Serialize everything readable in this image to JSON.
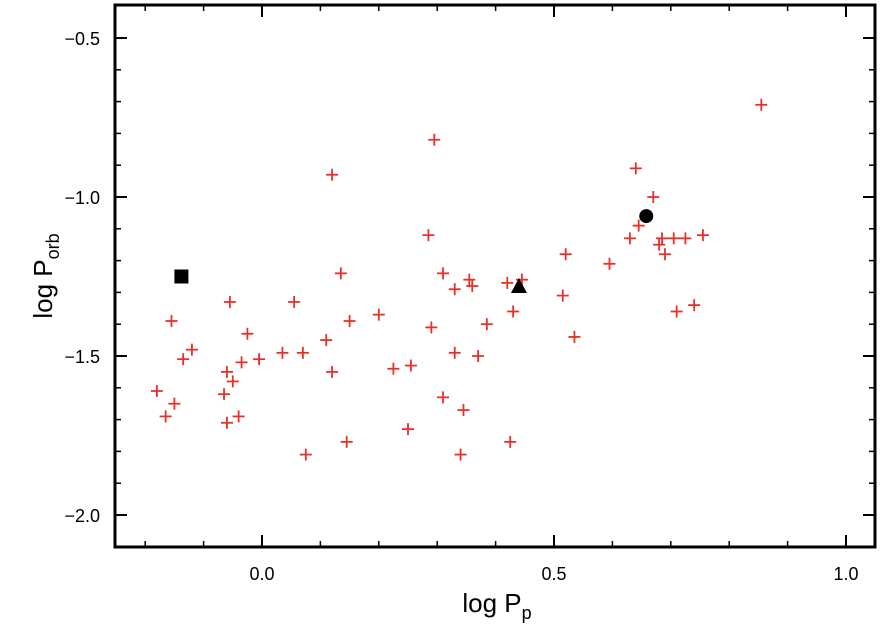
{
  "chart_data": {
    "type": "scatter",
    "xlabel": "log P",
    "xlabel_sub": "p",
    "ylabel": "log P",
    "ylabel_sub": "orb",
    "xlim": [
      -0.25,
      1.05
    ],
    "ylim": [
      -2.1,
      -0.4
    ],
    "x_ticks": [
      0.0,
      0.5,
      1.0
    ],
    "x_tick_labels": [
      "0.0",
      "0.5",
      "1.0"
    ],
    "y_ticks": [
      -0.5,
      -1.0,
      -1.5,
      -2.0
    ],
    "y_tick_labels": [
      "−0.5",
      "−1.0",
      "−1.5",
      "−2.0"
    ],
    "grid": false,
    "series": [
      {
        "marker": "plus",
        "color": "#e8302a",
        "points": [
          [
            -0.18,
            -1.61
          ],
          [
            -0.165,
            -1.69
          ],
          [
            -0.155,
            -1.39
          ],
          [
            -0.15,
            -1.65
          ],
          [
            -0.135,
            -1.51
          ],
          [
            -0.12,
            -1.48
          ],
          [
            -0.065,
            -1.62
          ],
          [
            -0.06,
            -1.55
          ],
          [
            -0.06,
            -1.71
          ],
          [
            -0.055,
            -1.33
          ],
          [
            -0.05,
            -1.58
          ],
          [
            -0.04,
            -1.69
          ],
          [
            -0.035,
            -1.52
          ],
          [
            -0.025,
            -1.43
          ],
          [
            -0.005,
            -1.51
          ],
          [
            0.035,
            -1.49
          ],
          [
            0.055,
            -1.33
          ],
          [
            0.07,
            -1.49
          ],
          [
            0.075,
            -1.81
          ],
          [
            0.11,
            -1.45
          ],
          [
            0.12,
            -1.55
          ],
          [
            0.12,
            -0.93
          ],
          [
            0.135,
            -1.24
          ],
          [
            0.145,
            -1.77
          ],
          [
            0.15,
            -1.39
          ],
          [
            0.2,
            -1.37
          ],
          [
            0.225,
            -1.54
          ],
          [
            0.25,
            -1.73
          ],
          [
            0.255,
            -1.53
          ],
          [
            0.285,
            -1.12
          ],
          [
            0.29,
            -1.41
          ],
          [
            0.295,
            -0.82
          ],
          [
            0.31,
            -1.24
          ],
          [
            0.31,
            -1.63
          ],
          [
            0.33,
            -1.29
          ],
          [
            0.33,
            -1.49
          ],
          [
            0.34,
            -1.81
          ],
          [
            0.345,
            -1.67
          ],
          [
            0.355,
            -1.26
          ],
          [
            0.36,
            -1.28
          ],
          [
            0.37,
            -1.5
          ],
          [
            0.385,
            -1.4
          ],
          [
            0.42,
            -1.27
          ],
          [
            0.425,
            -1.77
          ],
          [
            0.43,
            -1.36
          ],
          [
            0.445,
            -1.26
          ],
          [
            0.515,
            -1.31
          ],
          [
            0.52,
            -1.18
          ],
          [
            0.535,
            -1.44
          ],
          [
            0.595,
            -1.21
          ],
          [
            0.63,
            -1.13
          ],
          [
            0.64,
            -0.91
          ],
          [
            0.645,
            -1.09
          ],
          [
            0.67,
            -1.0
          ],
          [
            0.68,
            -1.15
          ],
          [
            0.685,
            -1.13
          ],
          [
            0.69,
            -1.18
          ],
          [
            0.705,
            -1.13
          ],
          [
            0.71,
            -1.36
          ],
          [
            0.725,
            -1.13
          ],
          [
            0.74,
            -1.34
          ],
          [
            0.755,
            -1.12
          ],
          [
            0.855,
            -0.71
          ]
        ]
      },
      {
        "marker": "square",
        "color": "#000000",
        "points": [
          [
            -0.138,
            -1.25
          ]
        ]
      },
      {
        "marker": "triangle",
        "color": "#000000",
        "points": [
          [
            0.44,
            -1.28
          ]
        ]
      },
      {
        "marker": "circle",
        "color": "#000000",
        "points": [
          [
            0.658,
            -1.06
          ]
        ]
      }
    ]
  }
}
